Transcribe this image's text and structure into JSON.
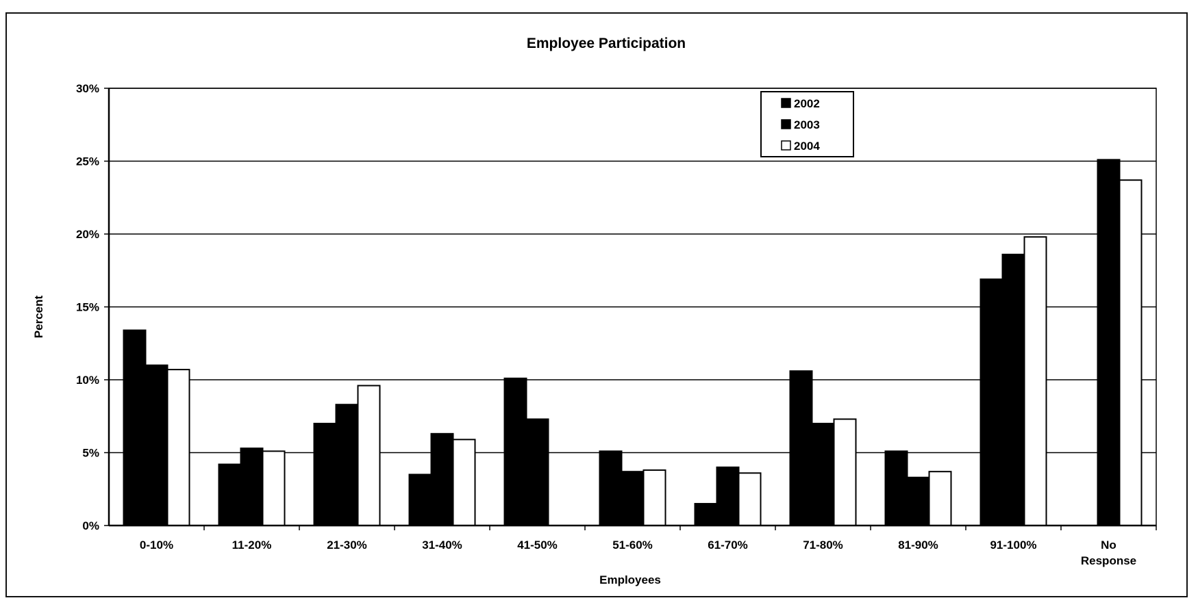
{
  "chart_data": {
    "type": "bar",
    "title": "Employee Participation",
    "xlabel": "Employees",
    "ylabel": "Percent",
    "ylim": [
      0,
      30
    ],
    "yticks": [
      "0%",
      "5%",
      "10%",
      "15%",
      "20%",
      "25%",
      "30%"
    ],
    "ytick_values": [
      0,
      5,
      10,
      15,
      20,
      25,
      30
    ],
    "grid": true,
    "legend_position": "top-center",
    "categories": [
      "0-10%",
      "11-20%",
      "21-30%",
      "31-40%",
      "41-50%",
      "51-60%",
      "61-70%",
      "71-80%",
      "81-90%",
      "91-100%",
      "No Response"
    ],
    "series": [
      {
        "name": "2002",
        "values": [
          13.4,
          4.2,
          7.0,
          3.5,
          10.1,
          5.1,
          1.5,
          10.6,
          5.1,
          16.9,
          null
        ],
        "color": "#000000"
      },
      {
        "name": "2003",
        "values": [
          11.0,
          5.3,
          8.3,
          6.3,
          7.3,
          3.7,
          4.0,
          7.0,
          3.3,
          18.6,
          25.1
        ],
        "color": "#000000"
      },
      {
        "name": "2004",
        "values": [
          10.7,
          5.1,
          9.6,
          5.9,
          null,
          3.8,
          3.6,
          7.3,
          3.7,
          19.8,
          23.7
        ],
        "color": "#ffffff"
      }
    ]
  },
  "colors": {
    "bar_dark": "#000000",
    "bar_light": "#ffffff",
    "gridline": "#000000"
  }
}
